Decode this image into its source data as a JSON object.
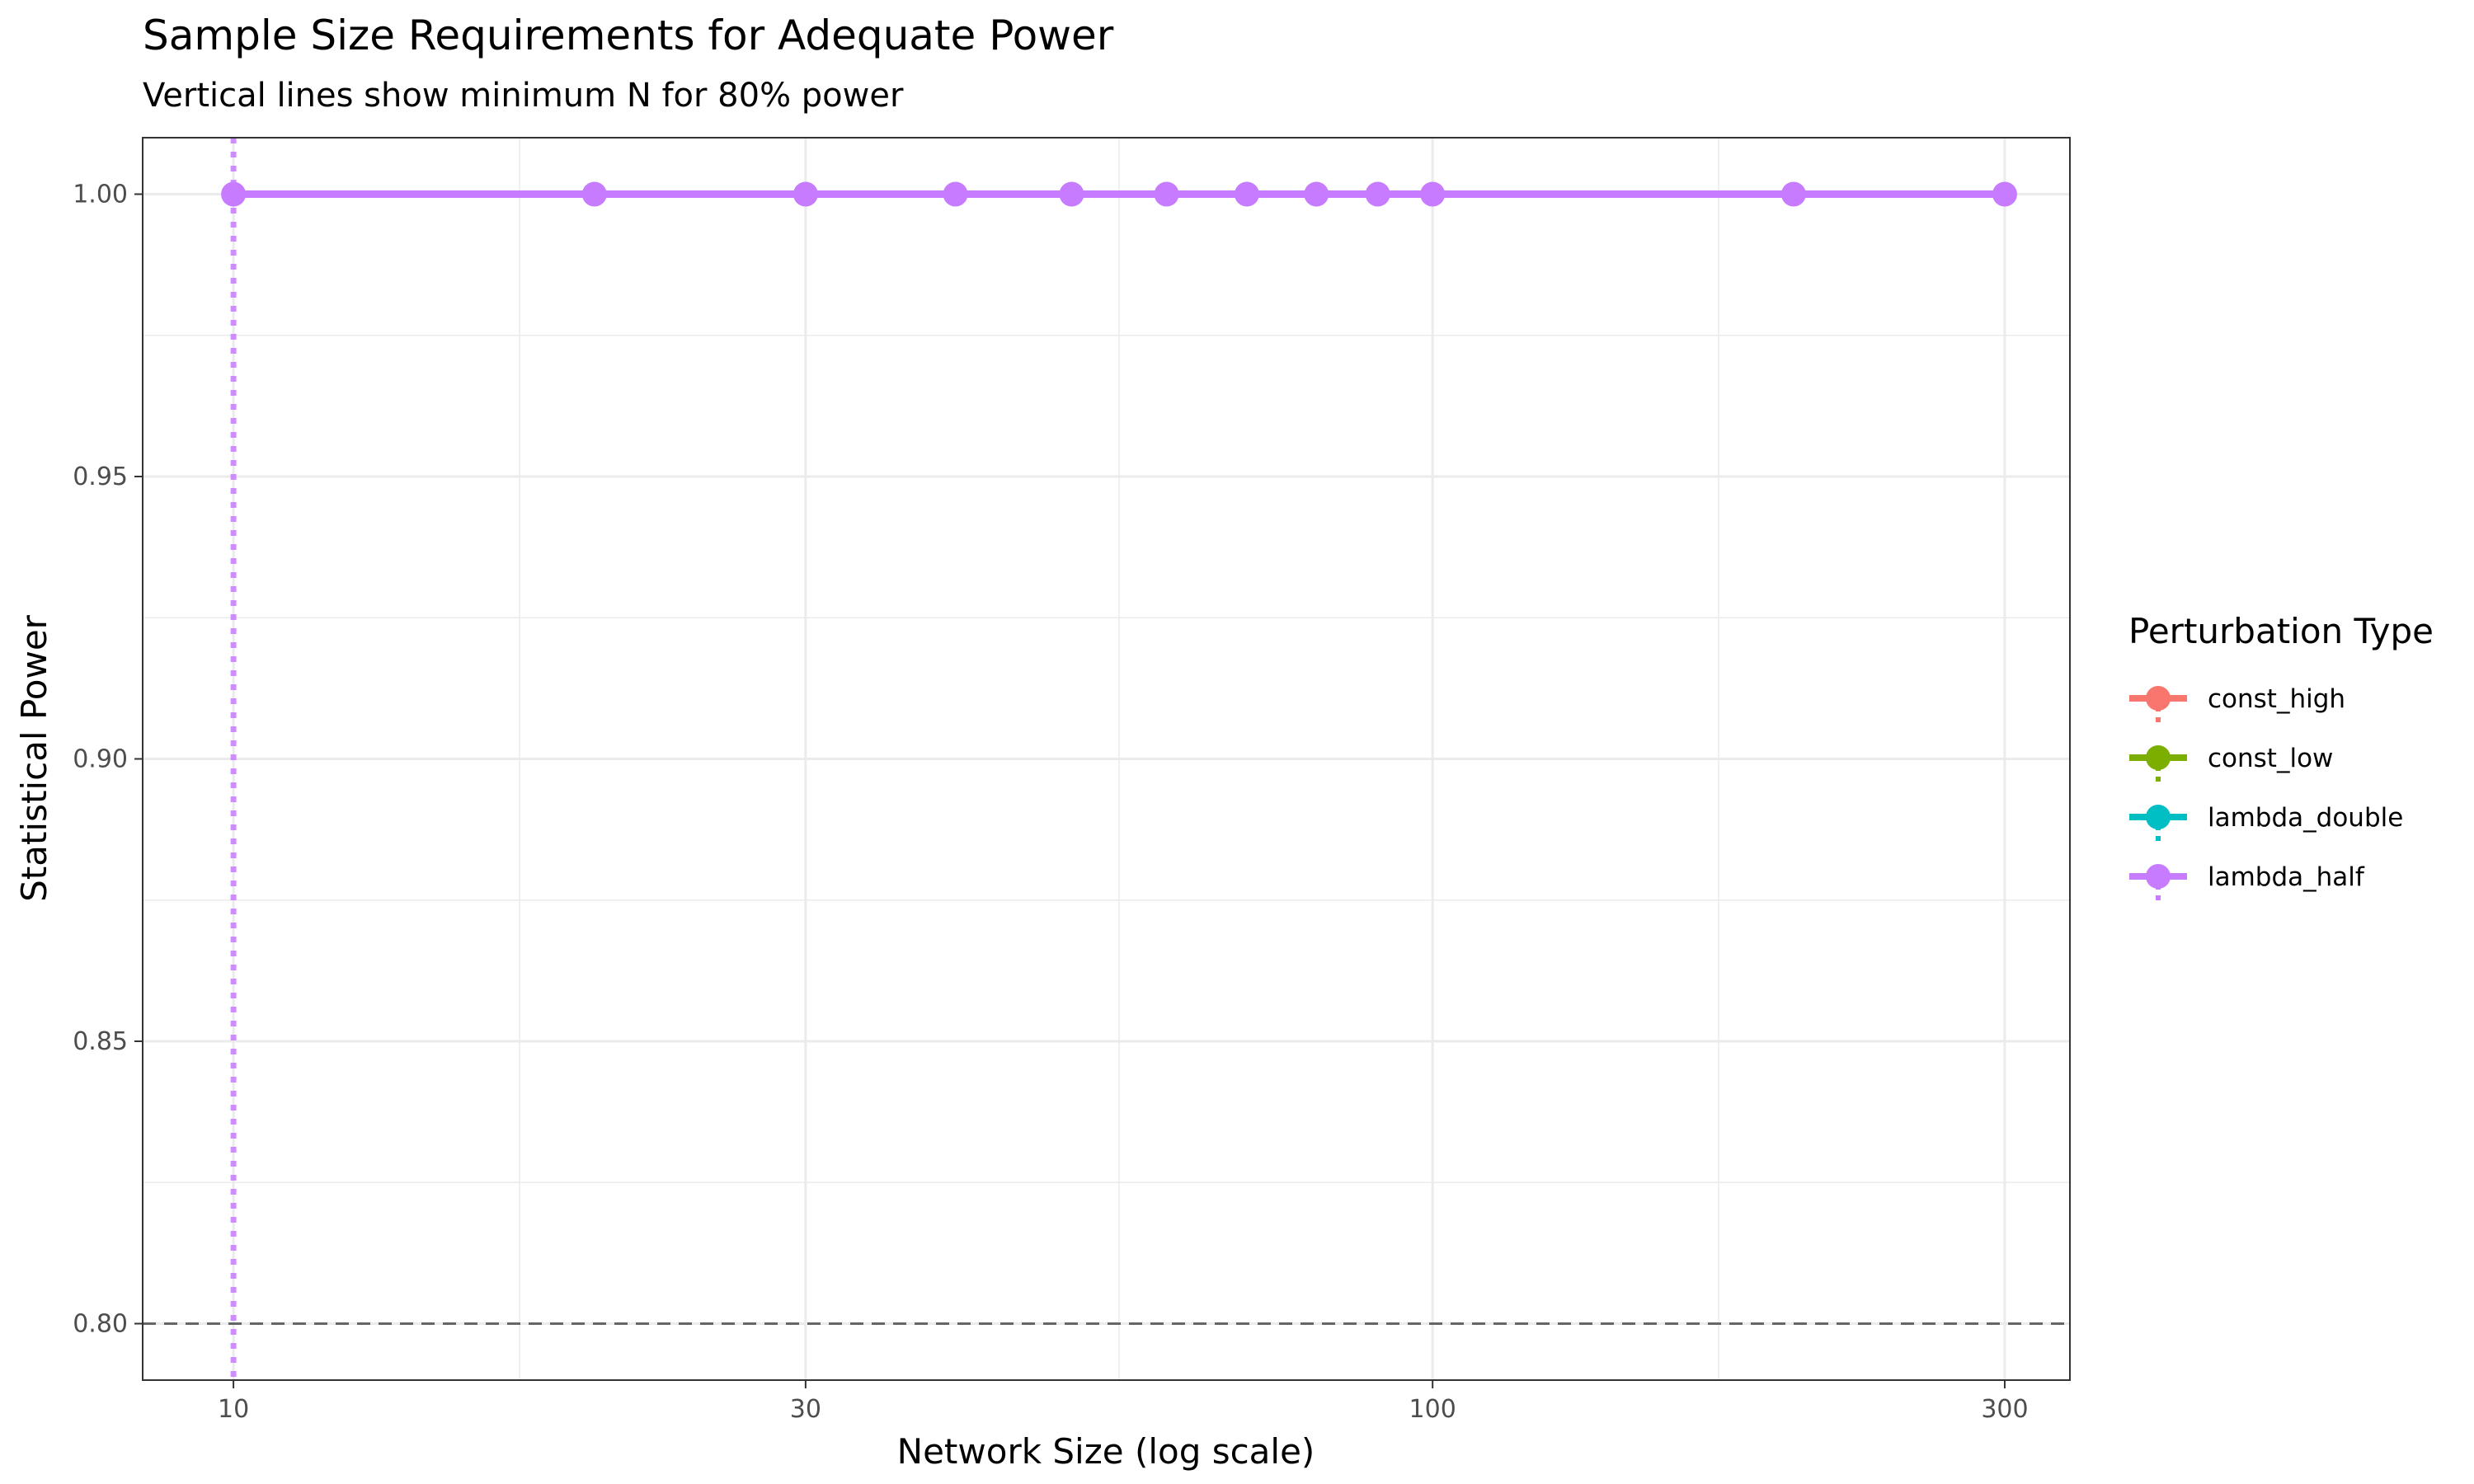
{
  "chart_data": {
    "type": "line",
    "title": "Sample Size Requirements for Adequate Power",
    "subtitle": "Vertical lines show minimum N for 80% power",
    "xlabel": "Network Size (log scale)",
    "ylabel": "Statistical Power",
    "x_scale": "log",
    "xlim": [
      8.4,
      340
    ],
    "ylim": [
      0.79,
      1.01
    ],
    "x_ticks": [
      {
        "value": 10,
        "label": "10"
      },
      {
        "value": 30,
        "label": "30"
      },
      {
        "value": 100,
        "label": "100"
      },
      {
        "value": 300,
        "label": "300"
      }
    ],
    "x_minor_ticks": [
      17.32,
      54.77,
      173.2
    ],
    "y_ticks": [
      {
        "value": 0.8,
        "label": "0.80"
      },
      {
        "value": 0.85,
        "label": "0.85"
      },
      {
        "value": 0.9,
        "label": "0.90"
      },
      {
        "value": 0.95,
        "label": "0.95"
      },
      {
        "value": 1.0,
        "label": "1.00"
      }
    ],
    "y_minor_ticks": [
      0.825,
      0.875,
      0.925,
      0.975
    ],
    "threshold": {
      "value": 0.8,
      "color": "#666666"
    },
    "grid": true,
    "legend": {
      "title": "Perturbation Type",
      "position": "right"
    },
    "series": [
      {
        "name": "const_high",
        "color": "#F8766D",
        "x": [],
        "y": [],
        "min_n": null
      },
      {
        "name": "const_low",
        "color": "#7CAE00",
        "x": [],
        "y": [],
        "min_n": null
      },
      {
        "name": "lambda_double",
        "color": "#00BFC4",
        "x": [],
        "y": [],
        "min_n": null
      },
      {
        "name": "lambda_half",
        "color": "#C77CFF",
        "x": [
          10,
          20,
          30,
          40,
          50,
          60,
          70,
          80,
          90,
          100,
          200,
          300
        ],
        "y": [
          1,
          1,
          1,
          1,
          1,
          1,
          1,
          1,
          1,
          1,
          1,
          1
        ],
        "min_n": 10
      }
    ]
  }
}
